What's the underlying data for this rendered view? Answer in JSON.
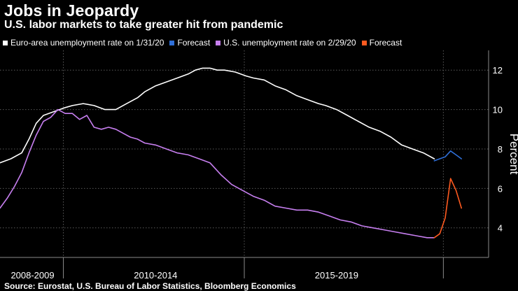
{
  "title": "Jobs in Jeopardy",
  "subtitle": "U.S. labor markets to take greater hit from pandemic",
  "source": "Source: Eurostat, U.S. Bureau of Labor Statistics, Bloomberg Economics",
  "legend": [
    {
      "label": "Euro-area unemployment rate on 1/31/20",
      "color": "#ffffff"
    },
    {
      "label": "Forecast",
      "color": "#2f6fd8"
    },
    {
      "label": "U.S. unemployment rate on 2/29/20",
      "color": "#c77ff0"
    },
    {
      "label": "Forecast",
      "color": "#ff5a1f"
    }
  ],
  "chart_data": {
    "type": "line",
    "title": "Jobs in Jeopardy",
    "subtitle": "U.S. labor markets to take greater hit from pandemic",
    "xlabel": "",
    "ylabel": "Percent",
    "ylim": [
      2.5,
      13
    ],
    "yticks": [
      4,
      6,
      8,
      10,
      12
    ],
    "xlim": [
      2008.0,
      2021.5
    ],
    "x_category_labels": [
      {
        "label": "2008-2009",
        "center": 2008.9
      },
      {
        "label": "2010-2014",
        "center": 2012.3
      },
      {
        "label": "2015-2019",
        "center": 2017.3
      }
    ],
    "x_dividers": [
      2009.75,
      2014.75,
      2020.25
    ],
    "grid": true,
    "series": [
      {
        "name": "Euro-area unemployment rate on 1/31/20",
        "color": "#ffffff",
        "x": [
          2008.0,
          2008.3,
          2008.6,
          2008.8,
          2009.0,
          2009.2,
          2009.5,
          2009.8,
          2010.0,
          2010.3,
          2010.6,
          2010.9,
          2011.2,
          2011.5,
          2011.8,
          2012.0,
          2012.3,
          2012.6,
          2012.9,
          2013.2,
          2013.4,
          2013.6,
          2013.8,
          2014.0,
          2014.2,
          2014.5,
          2014.8,
          2015.0,
          2015.3,
          2015.6,
          2015.9,
          2016.2,
          2016.5,
          2016.8,
          2017.0,
          2017.3,
          2017.6,
          2017.9,
          2018.2,
          2018.5,
          2018.8,
          2019.1,
          2019.4,
          2019.7,
          2020.0
        ],
        "y": [
          7.3,
          7.5,
          7.8,
          8.5,
          9.3,
          9.7,
          9.9,
          10.1,
          10.2,
          10.3,
          10.2,
          10.0,
          10.0,
          10.3,
          10.6,
          10.9,
          11.2,
          11.4,
          11.6,
          11.8,
          12.0,
          12.1,
          12.1,
          12.0,
          12.0,
          11.9,
          11.7,
          11.6,
          11.5,
          11.2,
          11.0,
          10.7,
          10.5,
          10.3,
          10.2,
          10.0,
          9.7,
          9.4,
          9.1,
          8.9,
          8.6,
          8.2,
          8.0,
          7.8,
          7.5
        ]
      },
      {
        "name": "Forecast",
        "color": "#2f6fd8",
        "x": [
          2020.0,
          2020.15,
          2020.3,
          2020.45,
          2020.6,
          2020.75
        ],
        "y": [
          7.4,
          7.5,
          7.6,
          7.9,
          7.7,
          7.5
        ]
      },
      {
        "name": "U.S. unemployment rate on 2/29/20",
        "color": "#c77ff0",
        "x": [
          2008.0,
          2008.2,
          2008.4,
          2008.6,
          2008.8,
          2009.0,
          2009.2,
          2009.4,
          2009.6,
          2009.8,
          2010.0,
          2010.2,
          2010.4,
          2010.6,
          2010.8,
          2011.0,
          2011.2,
          2011.4,
          2011.6,
          2011.8,
          2012.0,
          2012.3,
          2012.6,
          2012.9,
          2013.2,
          2013.5,
          2013.8,
          2014.1,
          2014.4,
          2014.7,
          2015.0,
          2015.3,
          2015.6,
          2015.9,
          2016.2,
          2016.5,
          2016.8,
          2017.1,
          2017.4,
          2017.7,
          2018.0,
          2018.3,
          2018.6,
          2018.9,
          2019.2,
          2019.5,
          2019.8,
          2020.0
        ],
        "y": [
          5.0,
          5.5,
          6.1,
          6.8,
          7.8,
          8.7,
          9.4,
          9.6,
          10.0,
          9.8,
          9.8,
          9.5,
          9.7,
          9.1,
          9.0,
          9.1,
          9.0,
          8.8,
          8.6,
          8.5,
          8.3,
          8.2,
          8.0,
          7.8,
          7.7,
          7.5,
          7.3,
          6.7,
          6.2,
          5.9,
          5.6,
          5.4,
          5.1,
          5.0,
          4.9,
          4.9,
          4.8,
          4.6,
          4.4,
          4.3,
          4.1,
          4.0,
          3.9,
          3.8,
          3.7,
          3.6,
          3.5,
          3.5
        ]
      },
      {
        "name": "Forecast",
        "color": "#ff5a1f",
        "x": [
          2020.0,
          2020.15,
          2020.3,
          2020.45,
          2020.6,
          2020.75
        ],
        "y": [
          3.5,
          3.7,
          4.5,
          6.5,
          5.9,
          5.0
        ]
      }
    ]
  }
}
